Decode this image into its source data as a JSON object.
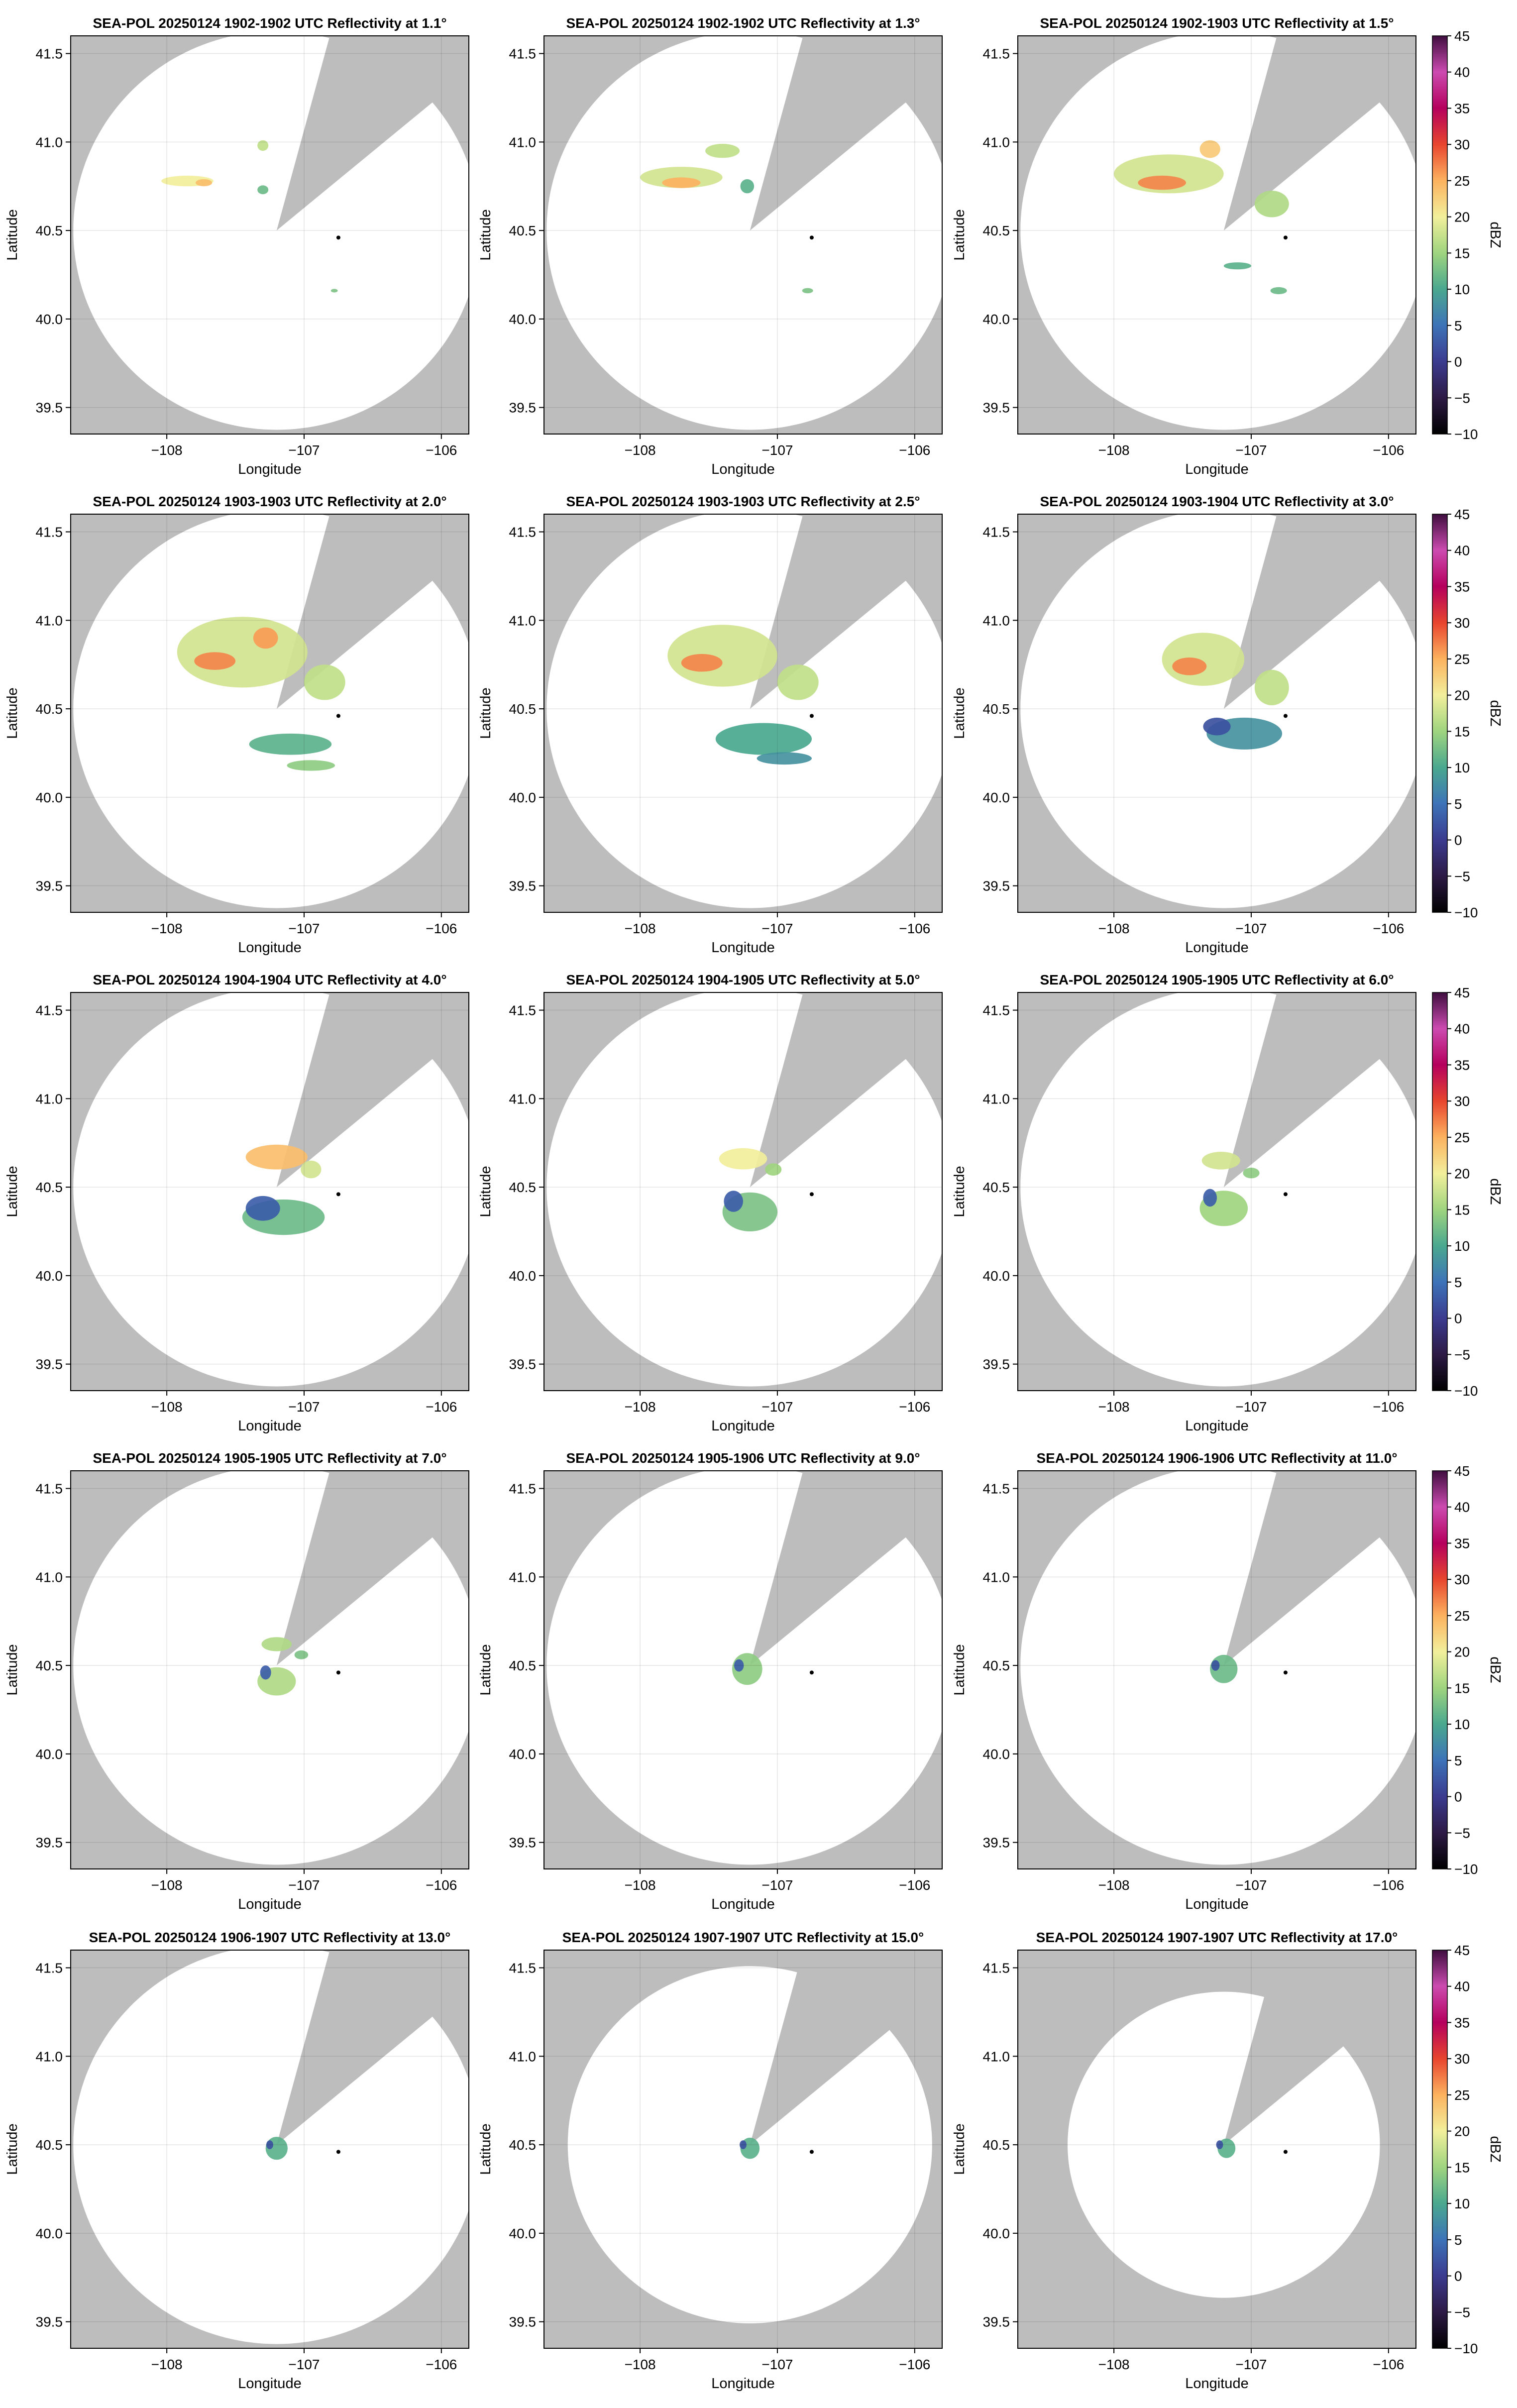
{
  "figure": {
    "layout": {
      "rows": 5,
      "cols": 3
    },
    "background_color": "#bdbdbd",
    "coverage_color": "#ffffff",
    "colormap": "spectral_r",
    "radar_marker_color": "#000000"
  },
  "colorbar": {
    "label": "dBZ",
    "range": [
      -10,
      45
    ],
    "ticks": [
      "45",
      "40",
      "35",
      "30",
      "25",
      "20",
      "15",
      "10",
      "5",
      "0",
      "−5",
      "−10"
    ],
    "stops": [
      {
        "value": -10,
        "color": "#000000"
      },
      {
        "value": -5,
        "color": "#2d1a45"
      },
      {
        "value": 0,
        "color": "#3b3b8f"
      },
      {
        "value": 5,
        "color": "#3d73b8"
      },
      {
        "value": 10,
        "color": "#4aa88f"
      },
      {
        "value": 15,
        "color": "#9fd47f"
      },
      {
        "value": 20,
        "color": "#f2ef9b"
      },
      {
        "value": 25,
        "color": "#fcb25f"
      },
      {
        "value": 30,
        "color": "#e8452e"
      },
      {
        "value": 35,
        "color": "#b5005d"
      },
      {
        "value": 40,
        "color": "#cc4bb0"
      },
      {
        "value": 45,
        "color": "#3f0e3f"
      }
    ]
  },
  "chart_data": [
    {
      "type": "heatmap",
      "title": "SEA-POL 20250124 1902-1902 UTC Reflectivity at 1.1°",
      "xlabel": "Longitude",
      "ylabel": "Latitude",
      "xlim": [
        -108.7,
        -105.8
      ],
      "ylim": [
        39.35,
        41.6
      ],
      "xticks": [
        "−108",
        "−107",
        "−106"
      ],
      "yticks": [
        "39.5",
        "40.0",
        "40.5",
        "41.0",
        "41.5"
      ],
      "grid": true,
      "radar_site": {
        "lon": -107.2,
        "lat": 40.5
      },
      "range_km": 125,
      "blocked_sector_deg": [
        15,
        50
      ],
      "marker": {
        "lon": -106.75,
        "lat": 40.46
      },
      "echoes": [
        {
          "lon": -107.85,
          "lat": 40.78,
          "w": 0.38,
          "h": 0.06,
          "dbz": 20
        },
        {
          "lon": -107.73,
          "lat": 40.77,
          "w": 0.12,
          "h": 0.04,
          "dbz": 24
        },
        {
          "lon": -107.3,
          "lat": 40.73,
          "w": 0.08,
          "h": 0.05,
          "dbz": 12
        },
        {
          "lon": -107.3,
          "lat": 40.98,
          "w": 0.08,
          "h": 0.06,
          "dbz": 17
        },
        {
          "lon": -106.78,
          "lat": 40.16,
          "w": 0.05,
          "h": 0.02,
          "dbz": 13
        }
      ]
    },
    {
      "type": "heatmap",
      "title": "SEA-POL 20250124 1902-1902 UTC Reflectivity at 1.3°",
      "xlabel": "Longitude",
      "ylabel": "Latitude",
      "xlim": [
        -108.7,
        -105.8
      ],
      "ylim": [
        39.35,
        41.6
      ],
      "xticks": [
        "−108",
        "−107",
        "−106"
      ],
      "yticks": [
        "39.5",
        "40.0",
        "40.5",
        "41.0",
        "41.5"
      ],
      "grid": true,
      "radar_site": {
        "lon": -107.2,
        "lat": 40.5
      },
      "range_km": 125,
      "blocked_sector_deg": [
        15,
        50
      ],
      "marker": {
        "lon": -106.75,
        "lat": 40.46
      },
      "echoes": [
        {
          "lon": -107.7,
          "lat": 40.8,
          "w": 0.6,
          "h": 0.12,
          "dbz": 18
        },
        {
          "lon": -107.7,
          "lat": 40.77,
          "w": 0.28,
          "h": 0.06,
          "dbz": 25
        },
        {
          "lon": -107.4,
          "lat": 40.95,
          "w": 0.25,
          "h": 0.08,
          "dbz": 17
        },
        {
          "lon": -107.22,
          "lat": 40.75,
          "w": 0.1,
          "h": 0.08,
          "dbz": 11
        },
        {
          "lon": -106.78,
          "lat": 40.16,
          "w": 0.08,
          "h": 0.03,
          "dbz": 13
        }
      ]
    },
    {
      "type": "heatmap",
      "title": "SEA-POL 20250124 1902-1903 UTC Reflectivity at 1.5°",
      "xlabel": "Longitude",
      "ylabel": "Latitude",
      "xlim": [
        -108.7,
        -105.8
      ],
      "ylim": [
        39.35,
        41.6
      ],
      "xticks": [
        "−108",
        "−107",
        "−106"
      ],
      "yticks": [
        "39.5",
        "40.0",
        "40.5",
        "41.0",
        "41.5"
      ],
      "grid": true,
      "radar_site": {
        "lon": -107.2,
        "lat": 40.5
      },
      "range_km": 125,
      "blocked_sector_deg": [
        15,
        50
      ],
      "marker": {
        "lon": -106.75,
        "lat": 40.46
      },
      "echoes": [
        {
          "lon": -107.6,
          "lat": 40.82,
          "w": 0.8,
          "h": 0.22,
          "dbz": 18
        },
        {
          "lon": -107.65,
          "lat": 40.77,
          "w": 0.35,
          "h": 0.08,
          "dbz": 27
        },
        {
          "lon": -107.3,
          "lat": 40.96,
          "w": 0.15,
          "h": 0.1,
          "dbz": 23
        },
        {
          "lon": -106.85,
          "lat": 40.65,
          "w": 0.25,
          "h": 0.15,
          "dbz": 16
        },
        {
          "lon": -106.8,
          "lat": 40.16,
          "w": 0.12,
          "h": 0.04,
          "dbz": 12
        },
        {
          "lon": -107.1,
          "lat": 40.3,
          "w": 0.2,
          "h": 0.04,
          "dbz": 11
        }
      ]
    },
    {
      "type": "heatmap",
      "title": "SEA-POL 20250124 1903-1903 UTC Reflectivity at 2.0°",
      "xlabel": "Longitude",
      "ylabel": "Latitude",
      "xlim": [
        -108.7,
        -105.8
      ],
      "ylim": [
        39.35,
        41.6
      ],
      "xticks": [
        "−108",
        "−107",
        "−106"
      ],
      "yticks": [
        "39.5",
        "40.0",
        "40.5",
        "41.0",
        "41.5"
      ],
      "grid": true,
      "radar_site": {
        "lon": -107.2,
        "lat": 40.5
      },
      "range_km": 125,
      "blocked_sector_deg": [
        15,
        50
      ],
      "marker": {
        "lon": -106.75,
        "lat": 40.46
      },
      "echoes": [
        {
          "lon": -107.45,
          "lat": 40.82,
          "w": 0.95,
          "h": 0.4,
          "dbz": 18
        },
        {
          "lon": -107.65,
          "lat": 40.77,
          "w": 0.3,
          "h": 0.1,
          "dbz": 27
        },
        {
          "lon": -107.28,
          "lat": 40.9,
          "w": 0.18,
          "h": 0.12,
          "dbz": 26
        },
        {
          "lon": -106.85,
          "lat": 40.65,
          "w": 0.3,
          "h": 0.2,
          "dbz": 17
        },
        {
          "lon": -107.1,
          "lat": 40.3,
          "w": 0.6,
          "h": 0.12,
          "dbz": 11
        },
        {
          "lon": -106.95,
          "lat": 40.18,
          "w": 0.35,
          "h": 0.06,
          "dbz": 14
        }
      ]
    },
    {
      "type": "heatmap",
      "title": "SEA-POL 20250124 1903-1903 UTC Reflectivity at 2.5°",
      "xlabel": "Longitude",
      "ylabel": "Latitude",
      "xlim": [
        -108.7,
        -105.8
      ],
      "ylim": [
        39.35,
        41.6
      ],
      "xticks": [
        "−108",
        "−107",
        "−106"
      ],
      "yticks": [
        "39.5",
        "40.0",
        "40.5",
        "41.0",
        "41.5"
      ],
      "grid": true,
      "radar_site": {
        "lon": -107.2,
        "lat": 40.5
      },
      "range_km": 125,
      "blocked_sector_deg": [
        15,
        50
      ],
      "marker": {
        "lon": -106.75,
        "lat": 40.46
      },
      "echoes": [
        {
          "lon": -107.4,
          "lat": 40.8,
          "w": 0.8,
          "h": 0.35,
          "dbz": 18
        },
        {
          "lon": -107.55,
          "lat": 40.76,
          "w": 0.3,
          "h": 0.1,
          "dbz": 27
        },
        {
          "lon": -106.85,
          "lat": 40.65,
          "w": 0.3,
          "h": 0.2,
          "dbz": 17
        },
        {
          "lon": -107.1,
          "lat": 40.33,
          "w": 0.7,
          "h": 0.18,
          "dbz": 10
        },
        {
          "lon": -106.95,
          "lat": 40.22,
          "w": 0.4,
          "h": 0.07,
          "dbz": 8
        }
      ]
    },
    {
      "type": "heatmap",
      "title": "SEA-POL 20250124 1903-1904 UTC Reflectivity at 3.0°",
      "xlabel": "Longitude",
      "ylabel": "Latitude",
      "xlim": [
        -108.7,
        -105.8
      ],
      "ylim": [
        39.35,
        41.6
      ],
      "xticks": [
        "−108",
        "−107",
        "−106"
      ],
      "yticks": [
        "39.5",
        "40.0",
        "40.5",
        "41.0",
        "41.5"
      ],
      "grid": true,
      "radar_site": {
        "lon": -107.2,
        "lat": 40.5
      },
      "range_km": 125,
      "blocked_sector_deg": [
        15,
        50
      ],
      "marker": {
        "lon": -106.75,
        "lat": 40.46
      },
      "echoes": [
        {
          "lon": -107.35,
          "lat": 40.78,
          "w": 0.6,
          "h": 0.3,
          "dbz": 18
        },
        {
          "lon": -107.45,
          "lat": 40.74,
          "w": 0.25,
          "h": 0.1,
          "dbz": 27
        },
        {
          "lon": -106.85,
          "lat": 40.62,
          "w": 0.25,
          "h": 0.2,
          "dbz": 17
        },
        {
          "lon": -107.05,
          "lat": 40.36,
          "w": 0.55,
          "h": 0.18,
          "dbz": 8
        },
        {
          "lon": -107.25,
          "lat": 40.4,
          "w": 0.2,
          "h": 0.1,
          "dbz": 2
        }
      ]
    },
    {
      "type": "heatmap",
      "title": "SEA-POL 20250124 1904-1904 UTC Reflectivity at 4.0°",
      "xlabel": "Longitude",
      "ylabel": "Latitude",
      "xlim": [
        -108.7,
        -105.8
      ],
      "ylim": [
        39.35,
        41.6
      ],
      "xticks": [
        "−108",
        "−107",
        "−106"
      ],
      "yticks": [
        "39.5",
        "40.0",
        "40.5",
        "41.0",
        "41.5"
      ],
      "grid": true,
      "radar_site": {
        "lon": -107.2,
        "lat": 40.5
      },
      "range_km": 125,
      "blocked_sector_deg": [
        15,
        50
      ],
      "marker": {
        "lon": -106.75,
        "lat": 40.46
      },
      "echoes": [
        {
          "lon": -107.2,
          "lat": 40.67,
          "w": 0.45,
          "h": 0.14,
          "dbz": 24
        },
        {
          "lon": -106.95,
          "lat": 40.6,
          "w": 0.15,
          "h": 0.1,
          "dbz": 18
        },
        {
          "lon": -107.15,
          "lat": 40.33,
          "w": 0.6,
          "h": 0.2,
          "dbz": 12
        },
        {
          "lon": -107.3,
          "lat": 40.38,
          "w": 0.25,
          "h": 0.14,
          "dbz": 3
        }
      ]
    },
    {
      "type": "heatmap",
      "title": "SEA-POL 20250124 1904-1905 UTC Reflectivity at 5.0°",
      "xlabel": "Longitude",
      "ylabel": "Latitude",
      "xlim": [
        -108.7,
        -105.8
      ],
      "ylim": [
        39.35,
        41.6
      ],
      "xticks": [
        "−108",
        "−107",
        "−106"
      ],
      "yticks": [
        "39.5",
        "40.0",
        "40.5",
        "41.0",
        "41.5"
      ],
      "grid": true,
      "radar_site": {
        "lon": -107.2,
        "lat": 40.5
      },
      "range_km": 125,
      "blocked_sector_deg": [
        15,
        50
      ],
      "marker": {
        "lon": -106.75,
        "lat": 40.46
      },
      "echoes": [
        {
          "lon": -107.25,
          "lat": 40.66,
          "w": 0.35,
          "h": 0.12,
          "dbz": 20
        },
        {
          "lon": -107.03,
          "lat": 40.6,
          "w": 0.12,
          "h": 0.07,
          "dbz": 15
        },
        {
          "lon": -107.2,
          "lat": 40.36,
          "w": 0.4,
          "h": 0.22,
          "dbz": 13
        },
        {
          "lon": -107.32,
          "lat": 40.42,
          "w": 0.14,
          "h": 0.12,
          "dbz": 3
        }
      ]
    },
    {
      "type": "heatmap",
      "title": "SEA-POL 20250124 1905-1905 UTC Reflectivity at 6.0°",
      "xlabel": "Longitude",
      "ylabel": "Latitude",
      "xlim": [
        -108.7,
        -105.8
      ],
      "ylim": [
        39.35,
        41.6
      ],
      "xticks": [
        "−108",
        "−107",
        "−106"
      ],
      "yticks": [
        "39.5",
        "40.0",
        "40.5",
        "41.0",
        "41.5"
      ],
      "grid": true,
      "radar_site": {
        "lon": -107.2,
        "lat": 40.5
      },
      "range_km": 125,
      "blocked_sector_deg": [
        15,
        50
      ],
      "marker": {
        "lon": -106.75,
        "lat": 40.46
      },
      "echoes": [
        {
          "lon": -107.22,
          "lat": 40.65,
          "w": 0.28,
          "h": 0.1,
          "dbz": 18
        },
        {
          "lon": -107.0,
          "lat": 40.58,
          "w": 0.12,
          "h": 0.06,
          "dbz": 14
        },
        {
          "lon": -107.2,
          "lat": 40.38,
          "w": 0.35,
          "h": 0.2,
          "dbz": 15
        },
        {
          "lon": -107.3,
          "lat": 40.44,
          "w": 0.1,
          "h": 0.1,
          "dbz": 3
        }
      ]
    },
    {
      "type": "heatmap",
      "title": "SEA-POL 20250124 1905-1905 UTC Reflectivity at 7.0°",
      "xlabel": "Longitude",
      "ylabel": "Latitude",
      "xlim": [
        -108.7,
        -105.8
      ],
      "ylim": [
        39.35,
        41.6
      ],
      "xticks": [
        "−108",
        "−107",
        "−106"
      ],
      "yticks": [
        "39.5",
        "40.0",
        "40.5",
        "41.0",
        "41.5"
      ],
      "grid": true,
      "radar_site": {
        "lon": -107.2,
        "lat": 40.5
      },
      "range_km": 125,
      "blocked_sector_deg": [
        15,
        50
      ],
      "marker": {
        "lon": -106.75,
        "lat": 40.46
      },
      "echoes": [
        {
          "lon": -107.2,
          "lat": 40.62,
          "w": 0.22,
          "h": 0.08,
          "dbz": 16
        },
        {
          "lon": -107.02,
          "lat": 40.56,
          "w": 0.1,
          "h": 0.05,
          "dbz": 13
        },
        {
          "lon": -107.2,
          "lat": 40.41,
          "w": 0.28,
          "h": 0.16,
          "dbz": 16
        },
        {
          "lon": -107.28,
          "lat": 40.46,
          "w": 0.08,
          "h": 0.08,
          "dbz": 3
        }
      ]
    },
    {
      "type": "heatmap",
      "title": "SEA-POL 20250124 1905-1906 UTC Reflectivity at 9.0°",
      "xlabel": "Longitude",
      "ylabel": "Latitude",
      "xlim": [
        -108.7,
        -105.8
      ],
      "ylim": [
        39.35,
        41.6
      ],
      "xticks": [
        "−108",
        "−107",
        "−106"
      ],
      "yticks": [
        "39.5",
        "40.0",
        "40.5",
        "41.0",
        "41.5"
      ],
      "grid": true,
      "radar_site": {
        "lon": -107.2,
        "lat": 40.5
      },
      "range_km": 125,
      "blocked_sector_deg": [
        15,
        50
      ],
      "marker": {
        "lon": -106.75,
        "lat": 40.46
      },
      "echoes": [
        {
          "lon": -107.22,
          "lat": 40.48,
          "w": 0.22,
          "h": 0.18,
          "dbz": 14
        },
        {
          "lon": -107.28,
          "lat": 40.5,
          "w": 0.07,
          "h": 0.07,
          "dbz": 3
        }
      ]
    },
    {
      "type": "heatmap",
      "title": "SEA-POL 20250124 1906-1906 UTC Reflectivity at 11.0°",
      "xlabel": "Longitude",
      "ylabel": "Latitude",
      "xlim": [
        -108.7,
        -105.8
      ],
      "ylim": [
        39.35,
        41.6
      ],
      "xticks": [
        "−108",
        "−107",
        "−106"
      ],
      "yticks": [
        "39.5",
        "40.0",
        "40.5",
        "41.0",
        "41.5"
      ],
      "grid": true,
      "radar_site": {
        "lon": -107.2,
        "lat": 40.5
      },
      "range_km": 125,
      "blocked_sector_deg": [
        15,
        50
      ],
      "marker": {
        "lon": -106.75,
        "lat": 40.46
      },
      "echoes": [
        {
          "lon": -107.2,
          "lat": 40.48,
          "w": 0.2,
          "h": 0.16,
          "dbz": 12
        },
        {
          "lon": -107.26,
          "lat": 40.5,
          "w": 0.06,
          "h": 0.06,
          "dbz": 2
        }
      ]
    },
    {
      "type": "heatmap",
      "title": "SEA-POL 20250124 1906-1907 UTC Reflectivity at 13.0°",
      "xlabel": "Longitude",
      "ylabel": "Latitude",
      "xlim": [
        -108.7,
        -105.8
      ],
      "ylim": [
        39.35,
        41.6
      ],
      "xticks": [
        "−108",
        "−107",
        "−106"
      ],
      "yticks": [
        "39.5",
        "40.0",
        "40.5",
        "41.0",
        "41.5"
      ],
      "grid": true,
      "radar_site": {
        "lon": -107.2,
        "lat": 40.5
      },
      "range_km": 125,
      "blocked_sector_deg": [
        15,
        50
      ],
      "marker": {
        "lon": -106.75,
        "lat": 40.46
      },
      "echoes": [
        {
          "lon": -107.2,
          "lat": 40.48,
          "w": 0.16,
          "h": 0.13,
          "dbz": 11
        },
        {
          "lon": -107.25,
          "lat": 40.5,
          "w": 0.05,
          "h": 0.05,
          "dbz": 2
        }
      ]
    },
    {
      "type": "heatmap",
      "title": "SEA-POL 20250124 1907-1907 UTC Reflectivity at 15.0°",
      "xlabel": "Longitude",
      "ylabel": "Latitude",
      "xlim": [
        -108.7,
        -105.8
      ],
      "ylim": [
        39.35,
        41.6
      ],
      "xticks": [
        "−108",
        "−107",
        "−106"
      ],
      "yticks": [
        "39.5",
        "40.0",
        "40.5",
        "41.0",
        "41.5"
      ],
      "grid": true,
      "radar_site": {
        "lon": -107.2,
        "lat": 40.5
      },
      "range_km": 112,
      "blocked_sector_deg": [
        15,
        50
      ],
      "marker": {
        "lon": -106.75,
        "lat": 40.46
      },
      "echoes": [
        {
          "lon": -107.2,
          "lat": 40.48,
          "w": 0.14,
          "h": 0.12,
          "dbz": 11
        },
        {
          "lon": -107.25,
          "lat": 40.5,
          "w": 0.05,
          "h": 0.05,
          "dbz": 2
        }
      ]
    },
    {
      "type": "heatmap",
      "title": "SEA-POL 20250124 1907-1907 UTC Reflectivity at 17.0°",
      "xlabel": "Longitude",
      "ylabel": "Latitude",
      "xlim": [
        -108.7,
        -105.8
      ],
      "ylim": [
        39.35,
        41.6
      ],
      "xticks": [
        "−108",
        "−107",
        "−106"
      ],
      "yticks": [
        "39.5",
        "40.0",
        "40.5",
        "41.0",
        "41.5"
      ],
      "grid": true,
      "radar_site": {
        "lon": -107.2,
        "lat": 40.5
      },
      "range_km": 96,
      "blocked_sector_deg": [
        15,
        50
      ],
      "marker": {
        "lon": -106.75,
        "lat": 40.46
      },
      "echoes": [
        {
          "lon": -107.18,
          "lat": 40.48,
          "w": 0.13,
          "h": 0.11,
          "dbz": 11
        },
        {
          "lon": -107.23,
          "lat": 40.5,
          "w": 0.05,
          "h": 0.05,
          "dbz": 2
        }
      ]
    }
  ]
}
